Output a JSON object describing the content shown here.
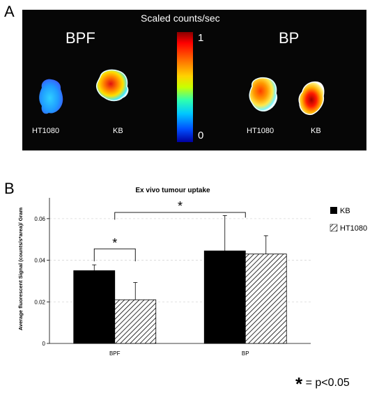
{
  "panel_a_letter": "A",
  "panel_b_letter": "B",
  "imaging": {
    "scale_title": "Scaled counts/sec",
    "scale_max": "1",
    "scale_min": "0",
    "left_group_label": "BPF",
    "right_group_label": "BP",
    "left_samples": [
      "HT1080",
      "KB"
    ],
    "right_samples": [
      "HT1080",
      "KB"
    ]
  },
  "significance_note": {
    "symbol": "*",
    "text": "= p<0.05"
  },
  "colors": {
    "kb": "#000000",
    "ht1080_hatch": "#000000",
    "imaging_background": "#060606"
  },
  "chart_data": {
    "type": "bar",
    "title": "Ex vivo tumour uptake",
    "xlabel": "",
    "ylabel": "Average fluorescent Signal (counts/s*area)/ Gram",
    "categories": [
      "BPF",
      "BP"
    ],
    "ylim": [
      0,
      0.07
    ],
    "yticks": [
      "0",
      "0.02",
      "0.04",
      "0.06"
    ],
    "ytick_values": [
      0,
      0.02,
      0.04,
      0.06
    ],
    "grid": true,
    "legend_position": "right",
    "series": [
      {
        "name": "KB",
        "fill": "solid",
        "values": [
          0.035,
          0.0445
        ],
        "errors": [
          0.0028,
          0.017
        ]
      },
      {
        "name": "HT1080",
        "fill": "hatched",
        "values": [
          0.021,
          0.043
        ],
        "errors": [
          0.0083,
          0.0088
        ]
      }
    ],
    "annotations": [
      {
        "text": "*",
        "type": "bracket",
        "from": "BPF/KB",
        "to": "BPF/HT1080"
      },
      {
        "text": "*",
        "type": "bracket",
        "from": "BPF",
        "to": "BP"
      }
    ]
  }
}
